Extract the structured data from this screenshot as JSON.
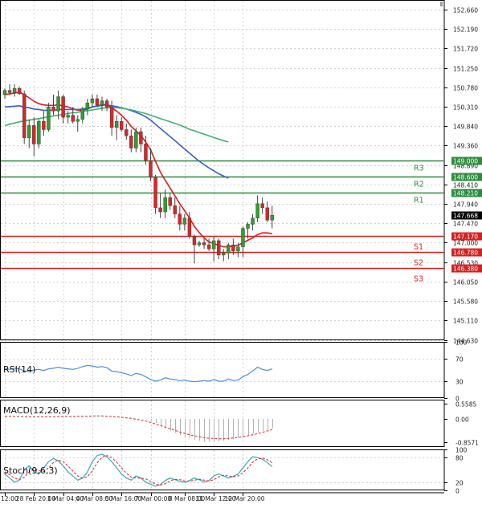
{
  "colors": {
    "up": "#2ca02c",
    "down": "#d62728",
    "wick": "#444444",
    "ma_fast": "#e31a1c",
    "ma_mid": "#3a5fcd",
    "ma_slow": "#3cb371",
    "resistance": "#2e8b3e",
    "support": "#d62020",
    "rsi": "#4a90e2",
    "macd_hist": "#b0b0b0",
    "macd_signal": "#d62728",
    "stoch_k": "#3aa6b9",
    "stoch_d": "#d62728",
    "grid": "#d0d0d0",
    "current_price_bg": "#000000"
  },
  "chart_data": [
    {
      "type": "candlestick",
      "panel": "price",
      "ylim": [
        144.63,
        152.9
      ],
      "y_ticks": [
        "152.660",
        "152.190",
        "151.720",
        "151.250",
        "150.780",
        "150.310",
        "149.840",
        "149.360",
        "148.890",
        "148.410",
        "147.940",
        "147.470",
        "147.000",
        "146.530",
        "146.050",
        "145.580",
        "145.110",
        "144.630"
      ],
      "x_ticks": [
        "12:00",
        "28 Feb 20:00",
        "1 Mar 04:00",
        "4 Mar 08:00",
        "5 Mar 16:00",
        "7 Mar 00:00",
        "8 Mar 08:00",
        "11 Mar 12:00",
        "12 Mar 20:00"
      ],
      "candles": [
        [
          150.6,
          150.75,
          150.5,
          150.7
        ],
        [
          150.7,
          150.85,
          150.6,
          150.65
        ],
        [
          150.65,
          150.85,
          150.55,
          150.75
        ],
        [
          150.75,
          150.8,
          150.6,
          150.62
        ],
        [
          150.62,
          150.7,
          149.4,
          149.55
        ],
        [
          149.55,
          150.0,
          149.3,
          149.85
        ],
        [
          149.85,
          150.05,
          149.1,
          149.4
        ],
        [
          149.4,
          150.0,
          149.3,
          149.95
        ],
        [
          149.95,
          150.2,
          149.6,
          149.75
        ],
        [
          149.75,
          150.4,
          149.7,
          150.3
        ],
        [
          150.3,
          150.6,
          150.1,
          150.2
        ],
        [
          150.2,
          150.7,
          150.0,
          150.55
        ],
        [
          150.55,
          150.6,
          149.9,
          150.05
        ],
        [
          150.05,
          150.2,
          149.9,
          150.1
        ],
        [
          150.1,
          150.3,
          149.9,
          149.95
        ],
        [
          149.95,
          150.1,
          149.7,
          150.0
        ],
        [
          150.0,
          150.3,
          149.9,
          150.25
        ],
        [
          150.25,
          150.5,
          150.1,
          150.4
        ],
        [
          150.4,
          150.6,
          150.3,
          150.5
        ],
        [
          150.5,
          150.6,
          150.3,
          150.35
        ],
        [
          150.35,
          150.55,
          150.2,
          150.45
        ],
        [
          150.45,
          150.5,
          150.2,
          150.3
        ],
        [
          150.3,
          150.45,
          149.6,
          149.8
        ],
        [
          149.8,
          150.1,
          149.5,
          149.95
        ],
        [
          149.95,
          150.05,
          149.7,
          149.75
        ],
        [
          149.75,
          149.9,
          149.5,
          149.6
        ],
        [
          149.6,
          149.75,
          149.2,
          149.3
        ],
        [
          149.3,
          149.8,
          149.2,
          149.7
        ],
        [
          149.7,
          149.8,
          149.2,
          149.4
        ],
        [
          149.4,
          149.6,
          148.9,
          149.0
        ],
        [
          149.0,
          149.3,
          148.5,
          148.6
        ],
        [
          148.6,
          148.65,
          147.7,
          147.85
        ],
        [
          147.85,
          148.2,
          147.6,
          147.75
        ],
        [
          147.75,
          148.3,
          147.6,
          148.1
        ],
        [
          148.1,
          148.2,
          147.8,
          147.9
        ],
        [
          147.9,
          148.1,
          147.6,
          147.7
        ],
        [
          147.7,
          147.9,
          147.3,
          147.45
        ],
        [
          147.45,
          147.7,
          147.3,
          147.6
        ],
        [
          147.6,
          147.75,
          147.1,
          147.15
        ],
        [
          147.15,
          147.2,
          146.5,
          146.95
        ],
        [
          146.95,
          147.05,
          146.9,
          147.0
        ],
        [
          147.0,
          147.1,
          146.85,
          146.95
        ],
        [
          146.95,
          147.1,
          146.8,
          146.85
        ],
        [
          146.85,
          147.15,
          146.55,
          147.05
        ],
        [
          147.05,
          147.1,
          146.6,
          146.7
        ],
        [
          146.7,
          146.85,
          146.55,
          146.75
        ],
        [
          146.75,
          147.0,
          146.6,
          146.95
        ],
        [
          146.95,
          147.1,
          146.7,
          146.8
        ],
        [
          146.8,
          147.0,
          146.65,
          146.9
        ],
        [
          146.9,
          147.4,
          146.65,
          147.35
        ],
        [
          147.35,
          147.5,
          147.1,
          147.45
        ],
        [
          147.45,
          147.7,
          147.3,
          147.6
        ],
        [
          147.6,
          148.15,
          147.5,
          147.95
        ],
        [
          147.95,
          148.1,
          147.7,
          147.85
        ],
        [
          147.85,
          148.0,
          147.5,
          147.55
        ],
        [
          147.55,
          147.9,
          147.35,
          147.67
        ]
      ],
      "moving_averages": [
        {
          "key": "ma_fast",
          "values": [
            150.6,
            150.62,
            150.64,
            150.66,
            150.6,
            150.52,
            150.44,
            150.38,
            150.35,
            150.34,
            150.34,
            150.35,
            150.33,
            150.3,
            150.26,
            150.22,
            150.22,
            150.25,
            150.3,
            150.33,
            150.35,
            150.36,
            150.28,
            150.2,
            150.1,
            149.98,
            149.83,
            149.72,
            149.6,
            149.45,
            149.26,
            148.98,
            148.72,
            148.52,
            148.33,
            148.14,
            147.95,
            147.78,
            147.6,
            147.4,
            147.25,
            147.12,
            147.02,
            146.98,
            146.94,
            146.9,
            146.9,
            146.92,
            146.94,
            147.0,
            147.06,
            147.12,
            147.2,
            147.24,
            147.24,
            147.22
          ]
        },
        {
          "key": "ma_mid",
          "values": [
            150.3,
            150.31,
            150.32,
            150.33,
            150.3,
            150.28,
            150.25,
            150.24,
            150.22,
            150.22,
            150.22,
            150.24,
            150.24,
            150.24,
            150.24,
            150.24,
            150.25,
            150.27,
            150.3,
            150.32,
            150.34,
            150.35,
            150.33,
            150.31,
            150.28,
            150.25,
            150.21,
            150.17,
            150.12,
            150.06,
            149.98,
            149.88,
            149.78,
            149.68,
            149.58,
            149.48,
            149.38,
            149.28,
            149.18,
            149.08,
            148.98,
            148.9,
            148.82,
            148.75,
            148.68,
            148.62,
            148.57
          ]
        },
        {
          "key": "ma_slow",
          "values": [
            149.85,
            149.88,
            149.91,
            149.94,
            149.96,
            149.98,
            150.0,
            150.02,
            150.04,
            150.06,
            150.08,
            150.1,
            150.12,
            150.14,
            150.16,
            150.17,
            150.19,
            150.21,
            150.23,
            150.25,
            150.27,
            150.28,
            150.28,
            150.28,
            150.27,
            150.25,
            150.23,
            150.2,
            150.17,
            150.14,
            150.1,
            150.06,
            150.02,
            149.98,
            149.94,
            149.9,
            149.86,
            149.81,
            149.76,
            149.72,
            149.68,
            149.64,
            149.6,
            149.56,
            149.52,
            149.48,
            149.45
          ]
        }
      ],
      "levels": [
        {
          "label": "R3",
          "value": 149.0,
          "value_label": "149.000",
          "kind": "resistance"
        },
        {
          "label": "R2",
          "value": 148.6,
          "value_label": "148.600",
          "kind": "resistance"
        },
        {
          "label": "R1",
          "value": 148.21,
          "value_label": "148.210",
          "kind": "resistance"
        },
        {
          "label": "S1",
          "value": 147.17,
          "value_label": "147.170",
          "kind": "support"
        },
        {
          "label": "S2",
          "value": 146.78,
          "value_label": "146.780",
          "kind": "support"
        },
        {
          "label": "S3",
          "value": 146.38,
          "value_label": "146.380",
          "kind": "support"
        }
      ],
      "current_price": {
        "value": 147.668,
        "label": "147.668"
      }
    },
    {
      "type": "line",
      "panel": "rsi",
      "title": "RSI(14)",
      "ylim": [
        0,
        100
      ],
      "y_ticks": [
        "100",
        "70",
        "30",
        "0"
      ],
      "y_tick_values": [
        100,
        70,
        30,
        0
      ],
      "values": [
        52,
        51,
        53,
        52,
        48,
        47,
        50,
        51,
        49,
        52,
        53,
        55,
        53,
        52,
        51,
        53,
        56,
        58,
        57,
        55,
        56,
        54,
        48,
        47,
        45,
        43,
        40,
        44,
        42,
        38,
        33,
        30,
        32,
        36,
        34,
        33,
        31,
        32,
        30,
        29,
        30,
        31,
        30,
        33,
        30,
        30,
        34,
        31,
        32,
        38,
        42,
        48,
        55,
        51,
        49,
        52
      ]
    },
    {
      "type": "bar",
      "panel": "macd",
      "title": "MACD(12,26,9)",
      "ylim": [
        -1.05,
        0.72
      ],
      "y_ticks": [
        "0.5585",
        "0.00",
        "-0.8571"
      ],
      "y_tick_values": [
        0.5585,
        0.0,
        -0.8571
      ],
      "histogram_start_index": 30,
      "histogram": [
        -0.05,
        -0.15,
        -0.25,
        -0.35,
        -0.45,
        -0.52,
        -0.6,
        -0.66,
        -0.72,
        -0.78,
        -0.82,
        -0.85,
        -0.86,
        -0.85,
        -0.84,
        -0.82,
        -0.78,
        -0.75,
        -0.7,
        -0.65,
        -0.6,
        -0.55,
        -0.5,
        -0.45,
        -0.4,
        -0.35
      ],
      "signal": [
        0.1,
        0.1,
        0.09,
        0.09,
        0.09,
        0.08,
        0.08,
        0.08,
        0.08,
        0.08,
        0.08,
        0.09,
        0.09,
        0.09,
        0.09,
        0.1,
        0.1,
        0.1,
        0.11,
        0.11,
        0.11,
        0.1,
        0.09,
        0.08,
        0.06,
        0.04,
        0.02,
        -0.01,
        -0.04,
        -0.08,
        -0.13,
        -0.19,
        -0.25,
        -0.31,
        -0.37,
        -0.43,
        -0.49,
        -0.54,
        -0.59,
        -0.63,
        -0.67,
        -0.7,
        -0.72,
        -0.73,
        -0.74,
        -0.74,
        -0.73,
        -0.71,
        -0.69,
        -0.66,
        -0.63,
        -0.59,
        -0.55,
        -0.5,
        -0.45,
        -0.4
      ]
    },
    {
      "type": "line",
      "panel": "stoch",
      "title": "Stoch(9,6,3)",
      "ylim": [
        0,
        100
      ],
      "y_ticks": [
        "100",
        "80",
        "20",
        "0"
      ],
      "y_tick_values": [
        100,
        80,
        20,
        0
      ],
      "k": [
        40,
        30,
        20,
        25,
        50,
        60,
        45,
        40,
        55,
        70,
        78,
        72,
        60,
        45,
        35,
        25,
        30,
        45,
        70,
        85,
        88,
        82,
        70,
        55,
        40,
        30,
        25,
        35,
        30,
        20,
        15,
        10,
        14,
        24,
        30,
        26,
        22,
        20,
        24,
        30,
        26,
        20,
        24,
        35,
        40,
        35,
        30,
        34,
        40,
        55,
        70,
        82,
        80,
        76,
        68,
        58
      ],
      "d": [
        45,
        38,
        30,
        26,
        32,
        45,
        52,
        48,
        46,
        55,
        68,
        74,
        70,
        60,
        47,
        35,
        30,
        33,
        48,
        67,
        81,
        85,
        80,
        69,
        55,
        42,
        32,
        30,
        30,
        28,
        22,
        15,
        13,
        16,
        23,
        27,
        26,
        23,
        22,
        25,
        27,
        25,
        23,
        26,
        33,
        37,
        35,
        33,
        35,
        43,
        55,
        69,
        77,
        79,
        75,
        67
      ]
    }
  ],
  "x_axis": {
    "labels": [
      "12:00",
      "28 Feb 20:00",
      "1 Mar 04:00",
      "4 Mar 08:00",
      "5 Mar 16:00",
      "7 Mar 00:00",
      "8 Mar 08:00",
      "11 Mar 12:00",
      "12 Mar 20:00"
    ],
    "label_candle_index": [
      0,
      6,
      12,
      18,
      24,
      30,
      37,
      43,
      49
    ]
  }
}
